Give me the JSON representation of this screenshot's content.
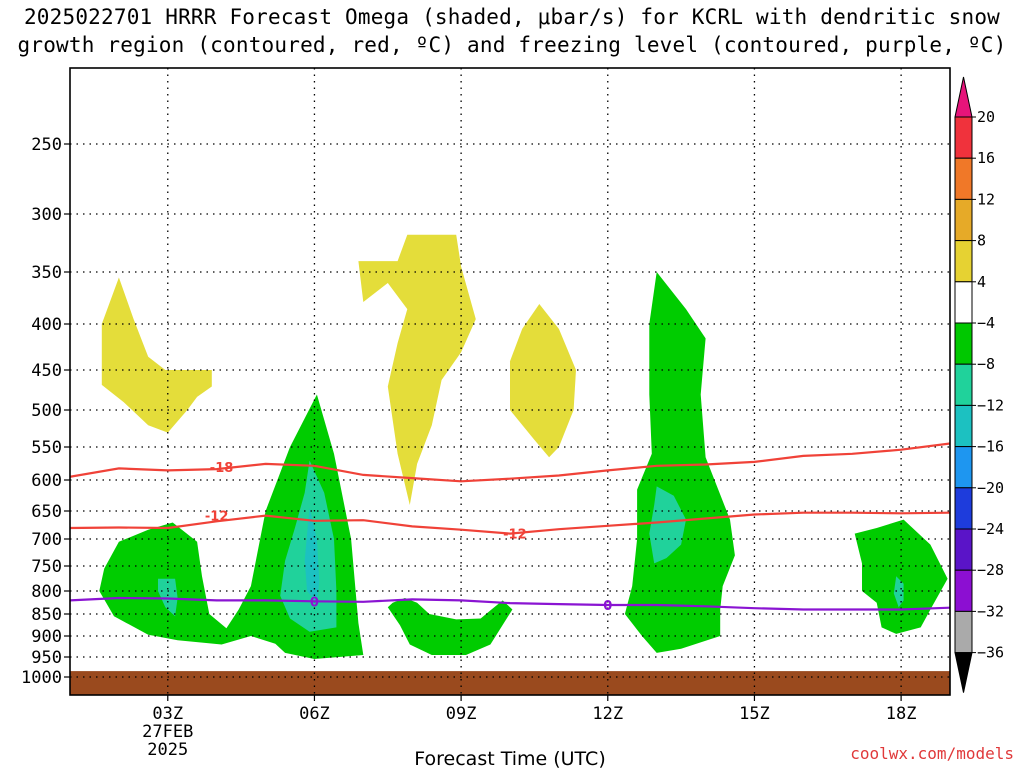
{
  "title": {
    "line1": "2025022701 HRRR Forecast Omega (shaded, μbar/s) for KCRL with dendritic snow",
    "line2": "growth region (contoured, red, ºC) and freezing level (contoured, purple, ºC)"
  },
  "credit": "coolwx.com/models",
  "chart_data": {
    "type": "contour",
    "title": "2025022701 HRRR Forecast Omega (shaded, μbar/s) for KCRL with dendritic snow growth region (contoured, red, ºC) and freezing level (contoured, purple, ºC)",
    "xlabel": "Forecast Time (UTC)",
    "ylabel": "",
    "xlim": [
      1,
      19
    ],
    "ylim": [
      1000,
      200
    ],
    "x_ticks": [
      {
        "value": 3,
        "label": "03Z",
        "sub1": "27FEB",
        "sub2": "2025"
      },
      {
        "value": 6,
        "label": "06Z",
        "sub1": "",
        "sub2": ""
      },
      {
        "value": 9,
        "label": "09Z",
        "sub1": "",
        "sub2": ""
      },
      {
        "value": 12,
        "label": "12Z",
        "sub1": "",
        "sub2": ""
      },
      {
        "value": 15,
        "label": "15Z",
        "sub1": "",
        "sub2": ""
      },
      {
        "value": 18,
        "label": "18Z",
        "sub1": "",
        "sub2": ""
      }
    ],
    "y_ticks": [
      250,
      300,
      350,
      400,
      450,
      500,
      550,
      600,
      650,
      700,
      750,
      800,
      850,
      900,
      950,
      1000
    ],
    "y_tick_labels": [
      "250",
      "300",
      "350",
      "400",
      "450",
      "500",
      "550",
      "600",
      "650",
      "700",
      "750",
      "800",
      "850",
      "900",
      "950",
      "1000"
    ],
    "grid": "dotted",
    "terrain": {
      "top_pressure": 985,
      "color": "#9a4a1e"
    },
    "colors": {
      "positive_4_8": "#e4dd3a",
      "negative_4_8": "#00cc00",
      "negative_8_12": "#20d29b",
      "negative_12_16": "#1cc1c1",
      "dgz_contour": "#f04238",
      "freezing_contour": "#8a14d2"
    },
    "colorbar": {
      "levels": [
        "20",
        "16",
        "12",
        "8",
        "4",
        "−4",
        "−8",
        "−12",
        "−16",
        "−20",
        "−24",
        "−28",
        "−32",
        "−36"
      ],
      "colors": [
        "#f0323c",
        "#f07828",
        "#e6aa28",
        "#e6d232",
        "#ffffff",
        "#00c800",
        "#20d29b",
        "#1cc1c1",
        "#1e96f0",
        "#1e3cdc",
        "#5a14c8",
        "#8c0fd2",
        "#aaaaaa"
      ],
      "top_arrow": "#e6147a",
      "bottom_arrow": "#000000"
    },
    "shaded_regions": [
      {
        "value": "4 to 8",
        "color": "#e4dd3a",
        "points": [
          [
            2.0,
            355
          ],
          [
            2.3,
            395
          ],
          [
            2.6,
            435
          ],
          [
            2.95,
            450
          ],
          [
            3.9,
            450
          ],
          [
            3.9,
            470
          ],
          [
            3.6,
            483
          ],
          [
            3.4,
            500
          ],
          [
            3.0,
            530
          ],
          [
            2.6,
            520
          ],
          [
            2.1,
            490
          ],
          [
            1.65,
            468
          ],
          [
            1.65,
            400
          ]
        ]
      },
      {
        "value": "4 to 8",
        "color": "#e4dd3a",
        "points": [
          [
            6.9,
            340
          ],
          [
            7.7,
            340
          ],
          [
            7.9,
            317
          ],
          [
            8.9,
            317
          ],
          [
            9.0,
            345
          ],
          [
            9.3,
            395
          ],
          [
            9.0,
            430
          ],
          [
            8.6,
            462
          ],
          [
            8.4,
            520
          ],
          [
            8.1,
            575
          ],
          [
            7.95,
            640
          ],
          [
            7.7,
            560
          ],
          [
            7.5,
            470
          ],
          [
            7.7,
            420
          ],
          [
            7.9,
            385
          ],
          [
            7.5,
            360
          ],
          [
            7.0,
            378
          ]
        ]
      },
      {
        "value": "4 to 8",
        "color": "#e4dd3a",
        "points": [
          [
            10.6,
            380
          ],
          [
            11.0,
            405
          ],
          [
            11.35,
            450
          ],
          [
            11.3,
            500
          ],
          [
            11.0,
            550
          ],
          [
            10.8,
            565
          ],
          [
            10.5,
            540
          ],
          [
            10.0,
            500
          ],
          [
            10.0,
            440
          ],
          [
            10.25,
            405
          ]
        ]
      },
      {
        "value": "-4 to -8",
        "color": "#00cc00",
        "points": [
          [
            1.7,
            755
          ],
          [
            2.0,
            705
          ],
          [
            2.6,
            683
          ],
          [
            3.1,
            670
          ],
          [
            3.6,
            705
          ],
          [
            3.7,
            770
          ],
          [
            3.85,
            850
          ],
          [
            4.2,
            882
          ],
          [
            4.45,
            840
          ],
          [
            4.7,
            790
          ],
          [
            5.0,
            650
          ],
          [
            5.5,
            550
          ],
          [
            6.05,
            480
          ],
          [
            6.4,
            560
          ],
          [
            6.75,
            700
          ],
          [
            6.9,
            870
          ],
          [
            7.0,
            945
          ],
          [
            6.0,
            955
          ],
          [
            5.4,
            940
          ],
          [
            5.2,
            918
          ],
          [
            4.7,
            900
          ],
          [
            4.1,
            920
          ],
          [
            3.2,
            910
          ],
          [
            2.6,
            897
          ],
          [
            1.9,
            855
          ],
          [
            1.6,
            800
          ]
        ]
      },
      {
        "value": "-4 to -8",
        "color": "#00cc00",
        "points": [
          [
            7.6,
            825
          ],
          [
            7.85,
            815
          ],
          [
            8.1,
            825
          ],
          [
            8.35,
            850
          ],
          [
            8.9,
            862
          ],
          [
            9.4,
            860
          ],
          [
            9.6,
            842
          ],
          [
            9.85,
            820
          ],
          [
            10.05,
            840
          ],
          [
            9.6,
            920
          ],
          [
            9.1,
            945
          ],
          [
            8.4,
            945
          ],
          [
            7.95,
            920
          ],
          [
            7.75,
            875
          ],
          [
            7.5,
            835
          ]
        ]
      },
      {
        "value": "-4 to -8",
        "color": "#00cc00",
        "points": [
          [
            13.0,
            350
          ],
          [
            13.6,
            385
          ],
          [
            14.0,
            415
          ],
          [
            13.9,
            480
          ],
          [
            14.0,
            565
          ],
          [
            14.5,
            665
          ],
          [
            14.6,
            730
          ],
          [
            14.35,
            790
          ],
          [
            14.3,
            840
          ],
          [
            14.3,
            900
          ],
          [
            13.5,
            930
          ],
          [
            13.0,
            940
          ],
          [
            12.7,
            900
          ],
          [
            12.35,
            850
          ],
          [
            12.5,
            790
          ],
          [
            12.6,
            700
          ],
          [
            12.6,
            615
          ],
          [
            12.9,
            560
          ],
          [
            12.85,
            480
          ],
          [
            12.85,
            400
          ]
        ]
      },
      {
        "value": "-4 to -8",
        "color": "#00cc00",
        "points": [
          [
            17.05,
            690
          ],
          [
            17.5,
            680
          ],
          [
            18.05,
            665
          ],
          [
            18.6,
            710
          ],
          [
            18.95,
            775
          ],
          [
            18.65,
            830
          ],
          [
            18.4,
            880
          ],
          [
            17.9,
            895
          ],
          [
            17.6,
            880
          ],
          [
            17.5,
            825
          ],
          [
            17.2,
            800
          ],
          [
            17.2,
            745
          ]
        ]
      },
      {
        "value": "-8 to -12",
        "color": "#20d29b",
        "points": [
          [
            2.8,
            775
          ],
          [
            3.15,
            775
          ],
          [
            3.2,
            815
          ],
          [
            3.15,
            855
          ],
          [
            2.95,
            835
          ],
          [
            2.8,
            800
          ]
        ]
      },
      {
        "value": "-8 to -12",
        "color": "#20d29b",
        "points": [
          [
            5.9,
            570
          ],
          [
            6.2,
            620
          ],
          [
            6.4,
            700
          ],
          [
            6.45,
            800
          ],
          [
            6.45,
            880
          ],
          [
            5.9,
            890
          ],
          [
            5.5,
            860
          ],
          [
            5.3,
            810
          ],
          [
            5.4,
            740
          ],
          [
            5.6,
            680
          ],
          [
            5.8,
            620
          ]
        ]
      },
      {
        "value": "-8 to -12",
        "color": "#20d29b",
        "points": [
          [
            13.0,
            610
          ],
          [
            13.35,
            625
          ],
          [
            13.6,
            665
          ],
          [
            13.5,
            710
          ],
          [
            13.2,
            735
          ],
          [
            12.95,
            745
          ],
          [
            12.85,
            690
          ],
          [
            12.95,
            640
          ]
        ]
      },
      {
        "value": "-8 to -12",
        "color": "#20d29b",
        "points": [
          [
            17.9,
            770
          ],
          [
            18.05,
            785
          ],
          [
            18.05,
            820
          ],
          [
            17.95,
            835
          ],
          [
            17.85,
            805
          ]
        ]
      },
      {
        "value": "-12 to -16",
        "color": "#1cc1c1",
        "points": [
          [
            5.9,
            645
          ],
          [
            6.05,
            700
          ],
          [
            6.1,
            780
          ],
          [
            6.05,
            825
          ],
          [
            5.85,
            800
          ],
          [
            5.8,
            740
          ],
          [
            5.85,
            690
          ]
        ]
      }
    ],
    "series": [
      {
        "name": "-18",
        "color": "#f04238",
        "label_at": [
          4.1,
          580
        ],
        "points": [
          [
            1,
            595
          ],
          [
            2,
            582
          ],
          [
            3,
            585
          ],
          [
            4,
            583
          ],
          [
            5,
            575
          ],
          [
            6,
            578
          ],
          [
            7,
            592
          ],
          [
            8,
            597
          ],
          [
            9,
            602
          ],
          [
            10,
            598
          ],
          [
            11,
            593
          ],
          [
            12,
            585
          ],
          [
            13,
            578
          ],
          [
            14,
            576
          ],
          [
            15,
            572
          ],
          [
            16,
            563
          ],
          [
            17,
            560
          ],
          [
            18,
            554
          ],
          [
            19,
            545
          ]
        ]
      },
      {
        "name": "-12",
        "color": "#f04238",
        "label_at": [
          4.0,
          658
        ],
        "points": [
          [
            1,
            680
          ],
          [
            2,
            679
          ],
          [
            3,
            680
          ],
          [
            4,
            668
          ],
          [
            5,
            658
          ],
          [
            6,
            667
          ],
          [
            7,
            666
          ],
          [
            8,
            677
          ],
          [
            9,
            683
          ],
          [
            10,
            690
          ],
          [
            11,
            682
          ],
          [
            12,
            676
          ],
          [
            13,
            670
          ],
          [
            14,
            663
          ],
          [
            15,
            656
          ],
          [
            16,
            653
          ],
          [
            17,
            653
          ],
          [
            18,
            654
          ],
          [
            19,
            653
          ]
        ]
      },
      {
        "name": "0",
        "color": "#8a14d2",
        "label_at": [
          6.0,
          822
        ],
        "points": [
          [
            1,
            820
          ],
          [
            2,
            815
          ],
          [
            3,
            816
          ],
          [
            4,
            820
          ],
          [
            5,
            820
          ],
          [
            6,
            822
          ],
          [
            7,
            823
          ],
          [
            8,
            818
          ],
          [
            9,
            820
          ],
          [
            10,
            826
          ],
          [
            11,
            828
          ],
          [
            12,
            830
          ],
          [
            13,
            830
          ],
          [
            14,
            833
          ],
          [
            15,
            837
          ],
          [
            16,
            840
          ],
          [
            17,
            840
          ],
          [
            18,
            840
          ],
          [
            19,
            836
          ]
        ]
      }
    ],
    "contour_labels": [
      {
        "text": "-18",
        "x": 4.1,
        "y": 580,
        "color": "#f04238"
      },
      {
        "text": "-12",
        "x": 4.0,
        "y": 658,
        "color": "#f04238"
      },
      {
        "text": "-12",
        "x": 10.1,
        "y": 690,
        "color": "#f04238"
      },
      {
        "text": "0",
        "x": 6.0,
        "y": 822,
        "color": "#8a14d2"
      },
      {
        "text": "0",
        "x": 12.0,
        "y": 830,
        "color": "#8a14d2"
      }
    ]
  }
}
